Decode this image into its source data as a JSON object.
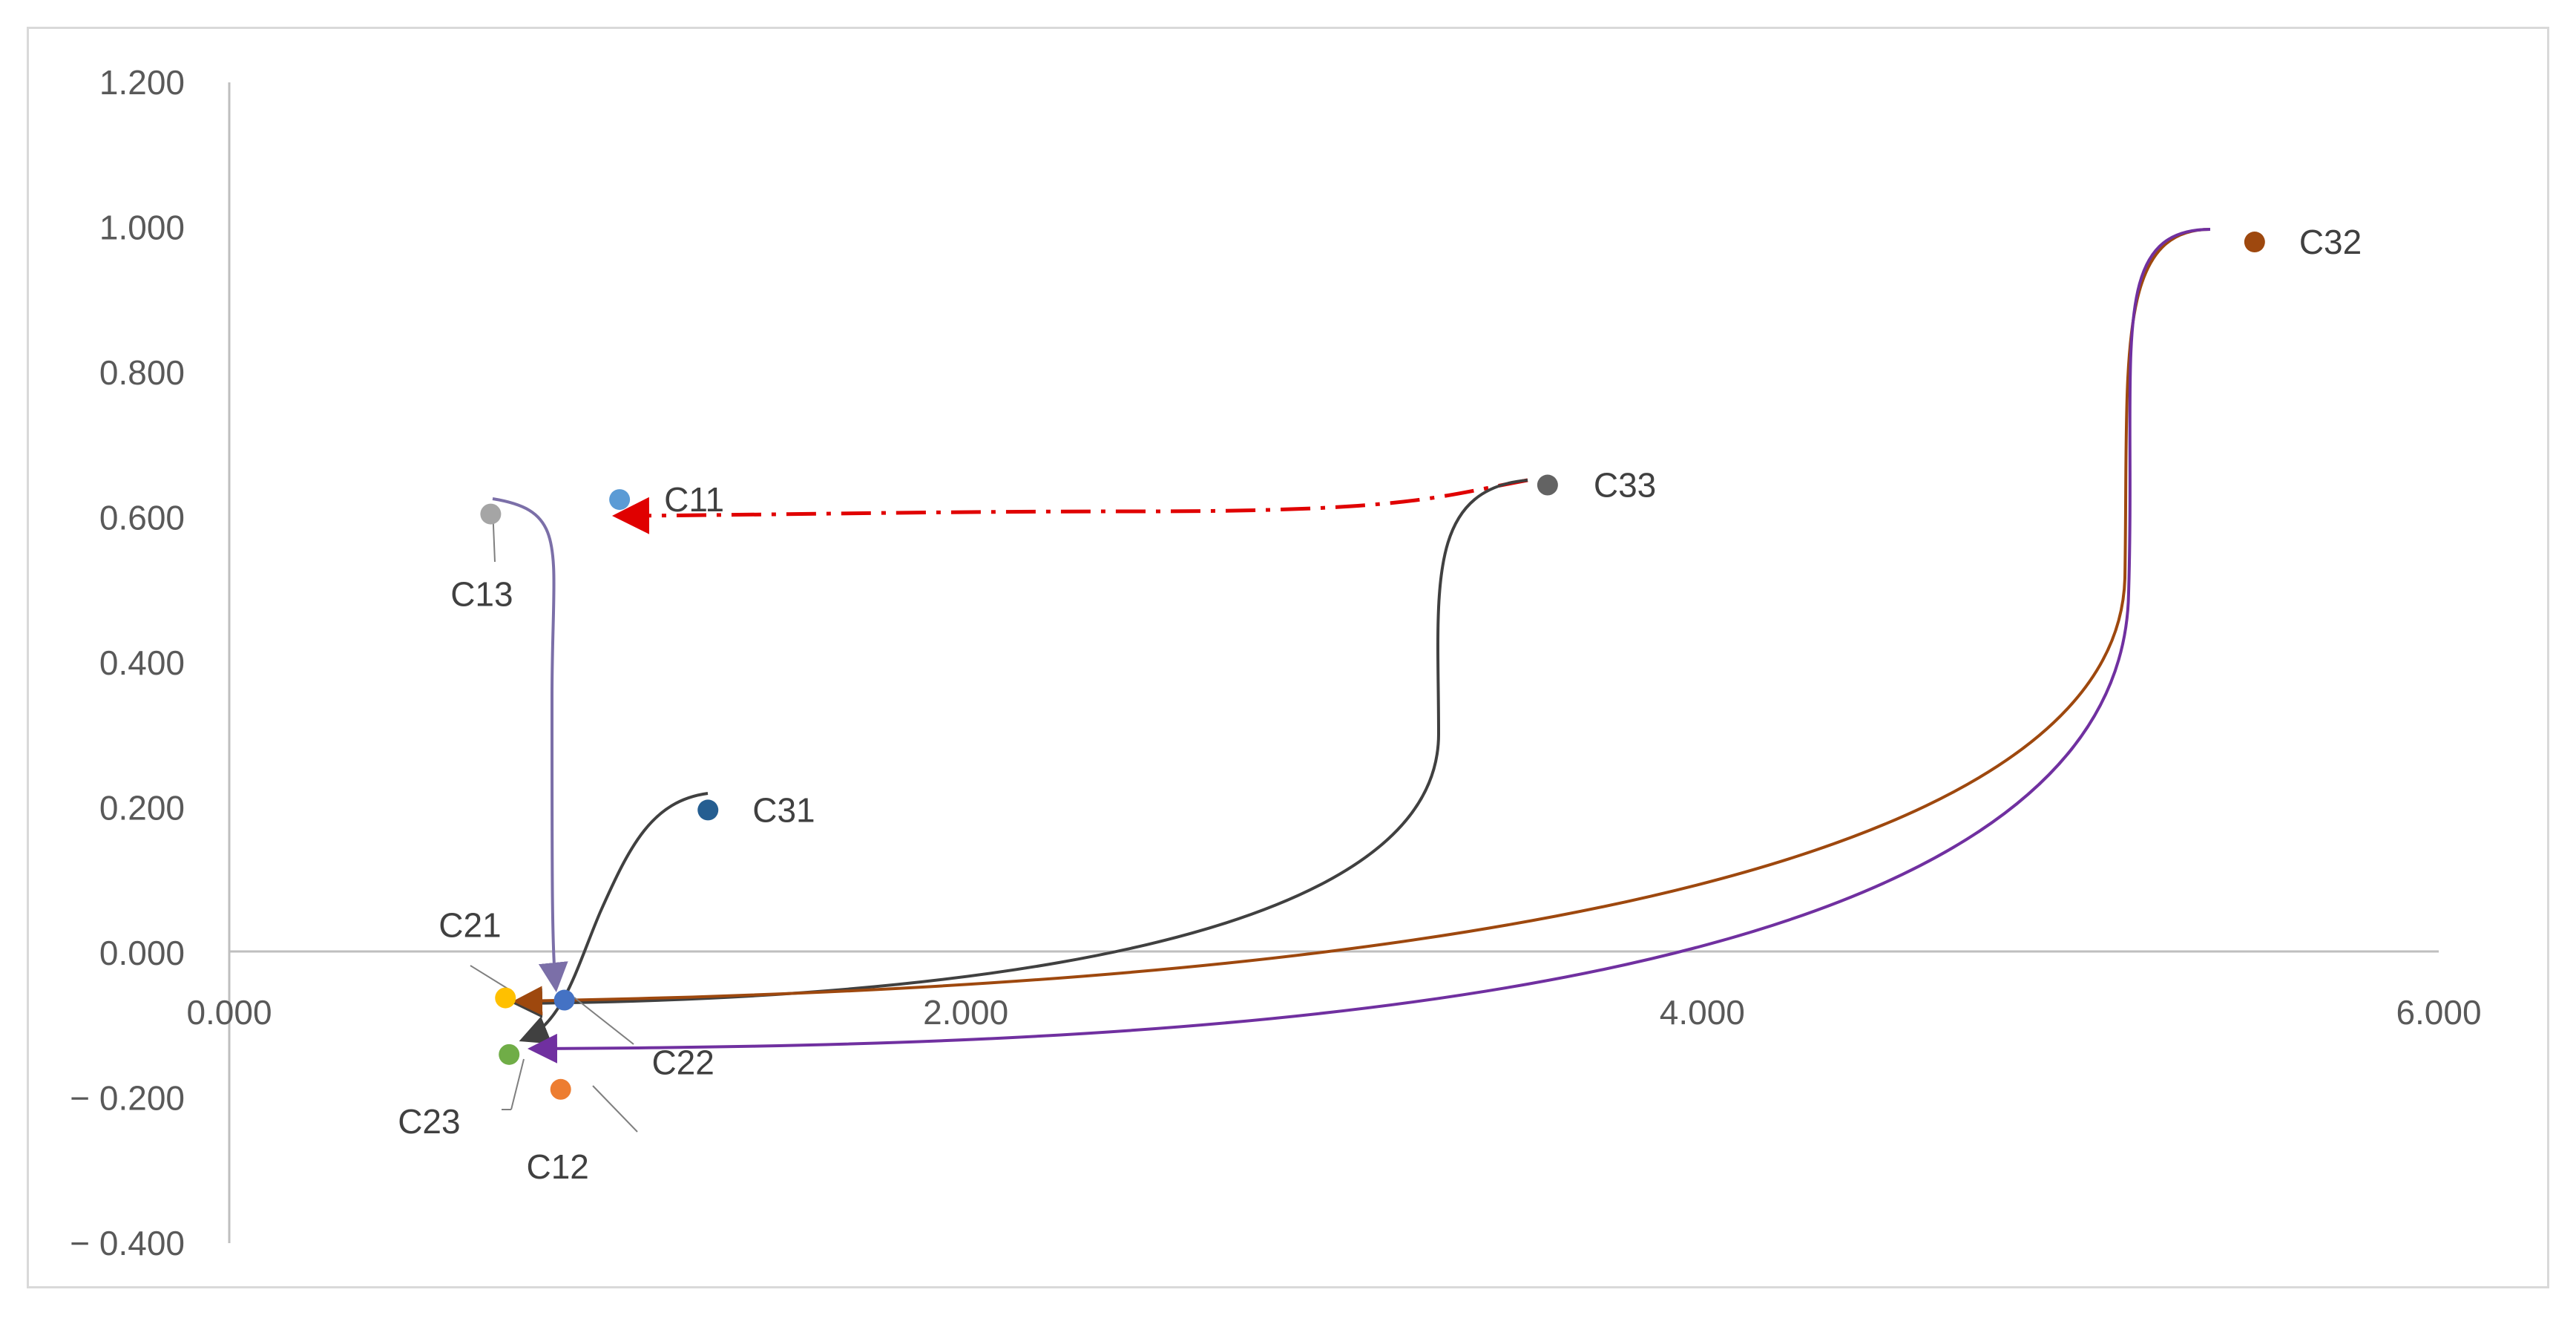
{
  "chart_data": {
    "type": "scatter",
    "title": "",
    "xlabel": "",
    "ylabel": "",
    "xlim": [
      0,
      6
    ],
    "ylim": [
      -0.4,
      1.2
    ],
    "x_ticks": [
      0,
      2,
      4,
      6
    ],
    "y_ticks": [
      1.2,
      1.0,
      0.8,
      0.6,
      0.4,
      0.2,
      0.0,
      -0.2,
      -0.4
    ],
    "x_tick_labels": [
      "0.000",
      "2.000",
      "4.000",
      "6.000"
    ],
    "y_tick_labels": [
      "1.200",
      "1.000",
      "0.800",
      "0.600",
      "0.400",
      "0.200",
      "0.000",
      "− 0.200",
      "− 0.400"
    ],
    "grid": false,
    "legend": "none",
    "points": [
      {
        "label": "C11",
        "x": 1.06,
        "y": 0.625,
        "color": "#5b9bd5"
      },
      {
        "label": "C12",
        "x": 0.9,
        "y": -0.188,
        "color": "#ed7d31"
      },
      {
        "label": "C13",
        "x": 0.71,
        "y": 0.605,
        "color": "#a5a5a5"
      },
      {
        "label": "C21",
        "x": 0.75,
        "y": -0.062,
        "color": "#ffc000"
      },
      {
        "label": "C22",
        "x": 0.91,
        "y": -0.065,
        "color": "#4472c4"
      },
      {
        "label": "C23",
        "x": 0.76,
        "y": -0.14,
        "color": "#70ad47"
      },
      {
        "label": "C31",
        "x": 1.3,
        "y": 0.197,
        "color": "#255e91"
      },
      {
        "label": "C32",
        "x": 5.5,
        "y": 0.98,
        "color": "#9e480e"
      },
      {
        "label": "C33",
        "x": 3.58,
        "y": 0.645,
        "color": "#636363"
      }
    ],
    "arrows": [
      {
        "from": "C33",
        "to": "C11",
        "color": "#e00000",
        "style": "dash-dot"
      },
      {
        "from": "C13",
        "to": "C22",
        "color": "#7b6fa8",
        "style": "solid"
      },
      {
        "from": "C31",
        "to": "C23",
        "color": "#404040",
        "style": "solid"
      },
      {
        "from": "C33",
        "to": "C22",
        "color": "#404040",
        "style": "solid"
      },
      {
        "from": "C32",
        "to": "C21",
        "color": "#9e480e",
        "style": "solid"
      },
      {
        "from": "C32",
        "to": "C23",
        "color": "#7030a0",
        "style": "solid"
      }
    ]
  }
}
